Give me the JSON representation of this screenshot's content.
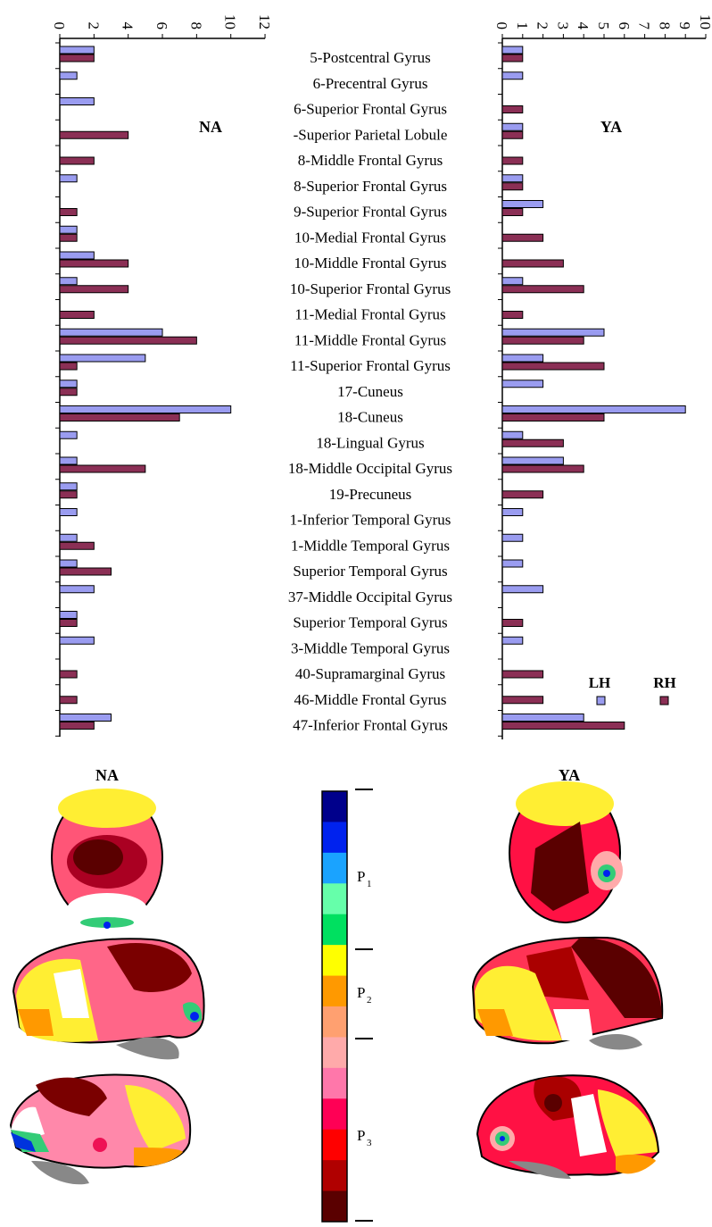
{
  "chart_data": [
    {
      "type": "bar",
      "panel": "NA",
      "title": "NA",
      "orientation": "horizontal",
      "xlim": [
        0,
        12
      ],
      "xticks": [
        "0",
        "2",
        "4",
        "6",
        "8",
        "10",
        "12"
      ],
      "categories": [
        "5-Postcentral Gyrus",
        "6-Precentral Gyrus",
        "6-Superior Frontal Gyrus",
        "-Superior Parietal Lobule",
        "8-Middle Frontal Gyrus",
        "8-Superior Frontal Gyrus",
        "9-Superior Frontal Gyrus",
        "10-Medial Frontal Gyrus",
        "10-Middle Frontal Gyrus",
        "10-Superior Frontal Gyrus",
        "11-Medial Frontal Gyrus",
        "11-Middle Frontal Gyrus",
        "11-Superior Frontal Gyrus",
        "17-Cuneus",
        "18-Cuneus",
        "18-Lingual Gyrus",
        "18-Middle Occipital Gyrus",
        "19-Precuneus",
        "1-Inferior Temporal Gyrus",
        "1-Middle Temporal Gyrus",
        "Superior Temporal Gyrus",
        "37-Middle Occipital Gyrus",
        "Superior Temporal Gyrus",
        "3-Middle Temporal Gyrus",
        "40-Supramarginal Gyrus",
        "46-Middle Frontal Gyrus",
        "47-Inferior Frontal Gyrus"
      ],
      "series": [
        {
          "name": "LH",
          "color": "#9a9cf0",
          "values": [
            2,
            1,
            2,
            0,
            0,
            1,
            0,
            1,
            2,
            1,
            0,
            6,
            5,
            1,
            10,
            1,
            1,
            1,
            1,
            1,
            1,
            2,
            1,
            2,
            0,
            0,
            3
          ]
        },
        {
          "name": "RH",
          "color": "#8b2f55",
          "values": [
            2,
            0,
            0,
            4,
            2,
            0,
            1,
            1,
            4,
            4,
            2,
            8,
            1,
            1,
            7,
            0,
            5,
            1,
            0,
            2,
            3,
            0,
            1,
            0,
            1,
            1,
            2
          ]
        }
      ]
    },
    {
      "type": "bar",
      "panel": "YA",
      "title": "YA",
      "orientation": "horizontal",
      "xlim": [
        0,
        10
      ],
      "xticks": [
        "0",
        "1",
        "2",
        "3",
        "4",
        "5",
        "6",
        "7",
        "8",
        "9",
        "10"
      ],
      "categories": [
        "5-Postcentral Gyrus",
        "6-Precentral Gyrus",
        "6-Superior Frontal Gyrus",
        "-Superior Parietal Lobule",
        "8-Middle Frontal Gyrus",
        "8-Superior Frontal Gyrus",
        "9-Superior Frontal Gyrus",
        "10-Medial Frontal Gyrus",
        "10-Middle Frontal Gyrus",
        "10-Superior Frontal Gyrus",
        "11-Medial Frontal Gyrus",
        "11-Middle Frontal Gyrus",
        "11-Superior Frontal Gyrus",
        "17-Cuneus",
        "18-Cuneus",
        "18-Lingual Gyrus",
        "18-Middle Occipital Gyrus",
        "19-Precuneus",
        "1-Inferior Temporal Gyrus",
        "1-Middle Temporal Gyrus",
        "Superior Temporal Gyrus",
        "37-Middle Occipital Gyrus",
        "Superior Temporal Gyrus",
        "3-Middle Temporal Gyrus",
        "40-Supramarginal Gyrus",
        "46-Middle Frontal Gyrus",
        "47-Inferior Frontal Gyrus"
      ],
      "legend": [
        "LH",
        "RH"
      ],
      "series": [
        {
          "name": "LH",
          "color": "#9a9cf0",
          "values": [
            1,
            1,
            0,
            1,
            0,
            1,
            2,
            0,
            0,
            1,
            0,
            5,
            2,
            2,
            9,
            1,
            3,
            0,
            1,
            1,
            1,
            2,
            0,
            1,
            0,
            0,
            4
          ]
        },
        {
          "name": "RH",
          "color": "#8b2f55",
          "values": [
            1,
            0,
            1,
            1,
            1,
            1,
            1,
            2,
            3,
            4,
            1,
            4,
            5,
            0,
            5,
            3,
            4,
            2,
            0,
            0,
            0,
            0,
            1,
            0,
            2,
            2,
            6
          ]
        }
      ]
    }
  ],
  "maps": {
    "left_title": "NA",
    "right_title": "YA",
    "colorbar": {
      "colors": [
        "#00008b",
        "#0022ee",
        "#1aa3ff",
        "#66ffaa",
        "#00e060",
        "#ffff00",
        "#ff9900",
        "#ffa070",
        "#ffaaaa",
        "#ff77aa",
        "#ff0055",
        "#ff0000",
        "#b00000",
        "#5a0000"
      ],
      "labels": [
        {
          "main": "P",
          "sub": "1"
        },
        {
          "main": "P",
          "sub": "2"
        },
        {
          "main": "P",
          "sub": "3"
        }
      ]
    }
  }
}
